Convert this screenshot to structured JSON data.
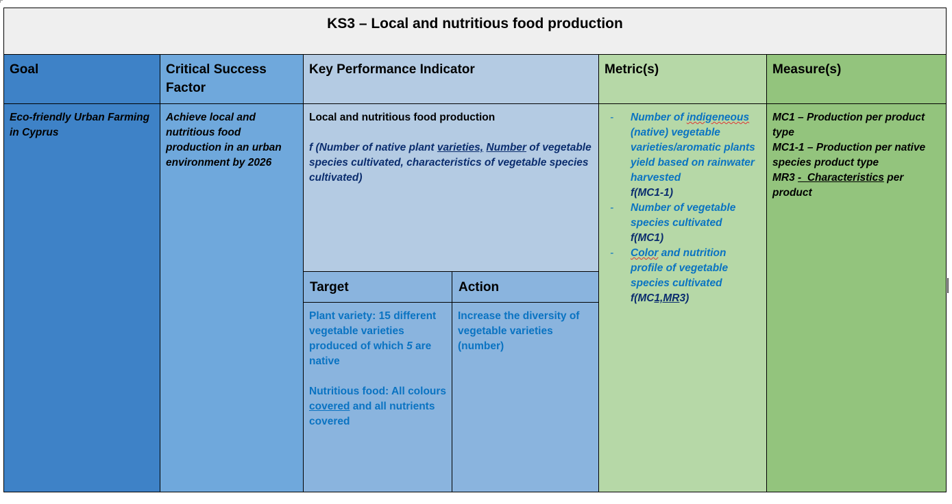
{
  "title": "KS3 – Local and nutritious food production",
  "headers": {
    "goal": "Goal",
    "csf": "Critical Success Factor",
    "kpi": "Key Performance Indicator",
    "metrics": "Metric(s)",
    "measures": "Measure(s)"
  },
  "goal": "Eco-friendly Urban Farming in Cyprus",
  "csf": "Achieve local and nutritious food production in an urban environment by 2026",
  "kpi": {
    "name": "Local and nutritious food production",
    "formula_prefix": "f (Number of native plant ",
    "formula_varieties": "varieties,",
    "formula_sep": " ",
    "formula_number": "Number",
    "formula_suffix": " of vegetable species cultivated, characteristics of vegetable species cultivated)"
  },
  "target_header": "Target",
  "action_header": "Action",
  "target": {
    "line1_pre": "Plant variety: 15 different vegetable varieties produced of which ",
    "line1_num": "5",
    "line1_post": " are native",
    "line2_pre": "Nutritious food: All colours ",
    "line2_u": "covered",
    "line2_post": " and all nutrients covered"
  },
  "action": "Increase the diversity of vegetable varieties (number)",
  "metrics": {
    "m1_pre": "Number of ",
    "m1_sq": "indigeneous",
    "m1_post": " (native) vegetable varieties/aromatic plants yield based on rainwater harvested",
    "m1_fn": "f(MC1-1)",
    "m2_text": "Number of vegetable species cultivated",
    "m2_fn": "f(MC1)",
    "m3_sq": "Color",
    "m3_post": " and nutrition profile of vegetable species cultivated",
    "m3_fn_pre": "f(MC",
    "m3_fn_u": "1,MR",
    "m3_fn_post": "3)",
    "dash": "-"
  },
  "measures": {
    "mc1": "MC1 – Production per product type",
    "mc11": "MC1-1 – Production per native species product type",
    "mr3_pre": "MR3 ",
    "mr3_u": "-  Characteristics",
    "mr3_post": " per product"
  }
}
